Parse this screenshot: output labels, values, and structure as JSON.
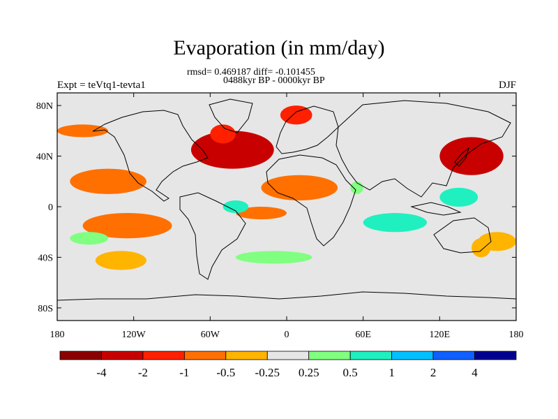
{
  "title": "Evaporation (in mm/day)",
  "stats_line1": "rmsd= 0.469187 diff= -0.101455",
  "stats_line2": "0488kyr BP - 0000kyr BP",
  "experiment": "Expt = teVtq1-tevta1",
  "season": "DJF",
  "map": {
    "projection": "cylindrical-equidistant",
    "lon_range": [
      -180,
      180
    ],
    "lat_range": [
      -90,
      90
    ],
    "background_color": "#e6e6e6",
    "lat_ticks": [
      {
        "value": 80,
        "label": "80N"
      },
      {
        "value": 40,
        "label": "40N"
      },
      {
        "value": 0,
        "label": "0"
      },
      {
        "value": -40,
        "label": "40S"
      },
      {
        "value": -80,
        "label": "80S"
      }
    ],
    "lon_ticks": [
      {
        "value": -180,
        "label": "180"
      },
      {
        "value": -120,
        "label": "120W"
      },
      {
        "value": -60,
        "label": "60W"
      },
      {
        "value": 0,
        "label": "0"
      },
      {
        "value": 60,
        "label": "60E"
      },
      {
        "value": 120,
        "label": "120E"
      },
      {
        "value": 180,
        "label": "180"
      }
    ]
  },
  "colorbar": {
    "colors": [
      "#8b0000",
      "#c80000",
      "#ff2000",
      "#ff7000",
      "#ffb400",
      "#e6e6e6",
      "#80ff80",
      "#20f0c0",
      "#00c0ff",
      "#1060ff",
      "#000090"
    ],
    "labels": [
      "-4",
      "-2",
      "-1",
      "-0.5",
      "-0.25",
      "0.25",
      "0.5",
      "1",
      "2",
      "4"
    ]
  },
  "field_regions": [
    {
      "name": "north-atlantic",
      "lon": [
        -75,
        -10
      ],
      "lat": [
        30,
        60
      ],
      "value": -3
    },
    {
      "name": "labrador-sea",
      "lon": [
        -60,
        -40
      ],
      "lat": [
        50,
        65
      ],
      "value": -1.5
    },
    {
      "name": "norwegian-sea",
      "lon": [
        -5,
        20
      ],
      "lat": [
        65,
        80
      ],
      "value": -1.5
    },
    {
      "name": "north-africa-atlantic",
      "lon": [
        -20,
        40
      ],
      "lat": [
        5,
        25
      ],
      "value": -0.7
    },
    {
      "name": "north-pacific-west",
      "lon": [
        120,
        170
      ],
      "lat": [
        25,
        55
      ],
      "value": -2
    },
    {
      "name": "north-pacific-central",
      "lon": [
        -170,
        -110
      ],
      "lat": [
        10,
        30
      ],
      "value": -0.7
    },
    {
      "name": "alaska",
      "lon": [
        -180,
        -140
      ],
      "lat": [
        55,
        65
      ],
      "value": -0.5
    },
    {
      "name": "south-pacific-east",
      "lon": [
        -160,
        -90
      ],
      "lat": [
        -25,
        -5
      ],
      "value": -0.6
    },
    {
      "name": "south-pacific-mid",
      "lon": [
        -150,
        -110
      ],
      "lat": [
        -50,
        -35
      ],
      "value": -0.4
    },
    {
      "name": "south-atlantic",
      "lon": [
        -40,
        0
      ],
      "lat": [
        -10,
        0
      ],
      "value": -0.5
    },
    {
      "name": "indian-ocean-tropics",
      "lon": [
        60,
        110
      ],
      "lat": [
        -20,
        -5
      ],
      "value": 0.6
    },
    {
      "name": "west-pacific-tropics",
      "lon": [
        120,
        150
      ],
      "lat": [
        0,
        15
      ],
      "value": 0.7
    },
    {
      "name": "south-pacific-west",
      "lon": [
        150,
        180
      ],
      "lat": [
        -35,
        -20
      ],
      "value": -0.4
    },
    {
      "name": "equatorial-atlantic-west",
      "lon": [
        -50,
        -30
      ],
      "lat": [
        -5,
        5
      ],
      "value": 0.6
    },
    {
      "name": "southern-ocean-atlantic",
      "lon": [
        -40,
        20
      ],
      "lat": [
        -45,
        -35
      ],
      "value": 0.3
    },
    {
      "name": "south-pacific-green",
      "lon": [
        -170,
        -140
      ],
      "lat": [
        -30,
        -20
      ],
      "value": 0.3
    },
    {
      "name": "arabian-sea",
      "lon": [
        50,
        60
      ],
      "lat": [
        10,
        20
      ],
      "value": 0.5
    },
    {
      "name": "australia-east",
      "lon": [
        145,
        160
      ],
      "lat": [
        -40,
        -25
      ],
      "value": -0.4
    }
  ]
}
